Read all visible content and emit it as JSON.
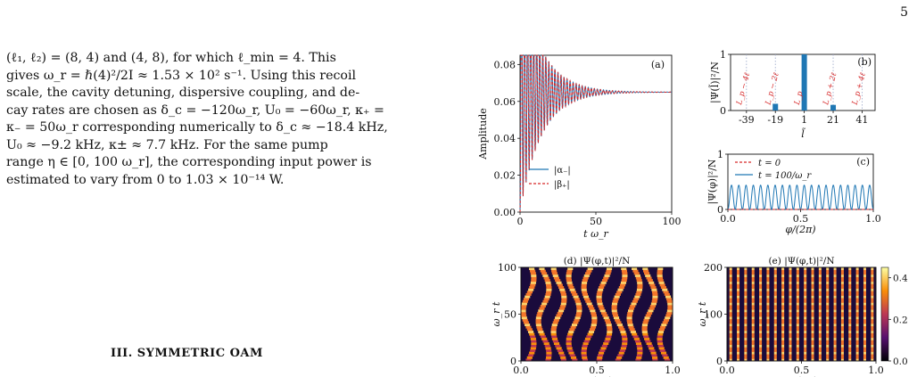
{
  "page_number": "5",
  "paragraph": [
    "(ℓ₁, ℓ₂) = (8, 4) and (4, 8), for which ℓ_min = 4. This",
    "gives ω_r = ℏ(4)²/2I ≈ 1.53 × 10² s⁻¹. Using this recoil",
    "scale, the cavity detuning, dispersive coupling, and de-",
    "cay rates are chosen as δ_c = −120ω_r, U₀ = −60ω_r, κ₊ =",
    "κ₋ = 50ω_r corresponding numerically to δ_c ≈ −18.4 kHz,",
    "U₀ ≈ −9.2 kHz, κ± ≈ 7.7 kHz. For the same pump",
    "range η ∈ [0, 100 ω_r], the corresponding input power is",
    "estimated to vary from 0 to 1.03 × 10⁻¹⁴ W."
  ],
  "section_heading": "III.   SYMMETRIC OAM",
  "colors": {
    "blue": "#1f77b4",
    "red": "#d62728"
  },
  "chart_data": [
    {
      "panel": "(a)",
      "type": "line",
      "xlabel": "t ω_r",
      "ylabel": "Amplitude",
      "xlim": [
        0,
        100
      ],
      "ylim": [
        0,
        0.085
      ],
      "xticks": [
        "0",
        "50",
        "100"
      ],
      "yticks": [
        "0.00",
        "0.02",
        "0.04",
        "0.06",
        "0.08"
      ],
      "oscillation": {
        "steady_value": 0.065,
        "initial_peak": 0.083,
        "initial_trough": 0.0,
        "period": 2.0,
        "decay_time": 14
      },
      "series": [
        {
          "name": "|α₋|",
          "style": "solid",
          "color": "#1f77b4"
        },
        {
          "name": "|β₊|",
          "style": "dashed",
          "color": "#d62728"
        }
      ],
      "legend": "bottom-left"
    },
    {
      "panel": "(b)",
      "type": "bar",
      "xlabel": "l̃",
      "ylabel": "|Ψ(l̃)|²/N",
      "ylim": [
        0,
        1
      ],
      "xticks": [
        "-39",
        "-19",
        "1",
        "21",
        "41"
      ],
      "yticks": [
        "0",
        "1"
      ],
      "bars": [
        {
          "x": -19,
          "value": 0.12
        },
        {
          "x": 1,
          "value": 1.0
        },
        {
          "x": 21,
          "value": 0.1
        }
      ],
      "annotations": [
        "L_p − 4ℓ",
        "L_p − 2ℓ",
        "L_p",
        "L_p + 2ℓ",
        "L_p + 4ℓ"
      ],
      "annotation_x": [
        -39,
        -19,
        1,
        21,
        41
      ]
    },
    {
      "panel": "(c)",
      "type": "line",
      "xlabel": "φ/(2π)",
      "ylabel": "|Ψ(φ)|²/N",
      "xlim": [
        0,
        1
      ],
      "ylim": [
        0,
        1
      ],
      "xticks": [
        "0.0",
        "0.5",
        "1.0"
      ],
      "yticks": [
        "0",
        "1"
      ],
      "series": [
        {
          "name": "t = 0",
          "style": "dashed",
          "color": "#d62728",
          "constant": 0.0
        },
        {
          "name": "t = 100/ω_r",
          "style": "solid",
          "color": "#1f77b4",
          "peaks": 20,
          "peak_value": 0.44
        }
      ],
      "legend": "top-left"
    },
    {
      "panel": "(d)",
      "type": "heatmap",
      "title": "(d)  |Ψ(φ,t)|²/N",
      "xlabel": "φ/(2π)",
      "ylabel": "ω_r t",
      "xlim": [
        0,
        1
      ],
      "ylim": [
        0,
        100
      ],
      "xticks": [
        "0.0",
        "0.5",
        "1.0"
      ],
      "yticks": [
        "0",
        "50",
        "100"
      ],
      "stripes": 10
    },
    {
      "panel": "(e)",
      "type": "heatmap",
      "title": "(e)  |Ψ(φ,t)|²/N",
      "xlabel": "φ/(2π)",
      "ylabel": "ω_r t",
      "xlim": [
        0,
        1
      ],
      "ylim": [
        0,
        200
      ],
      "xticks": [
        "0.0",
        "0.5",
        "1.0"
      ],
      "yticks": [
        "0",
        "100",
        "200"
      ],
      "stripes": 20,
      "colorbar_ticks": [
        "0.0",
        "0.2",
        "0.4"
      ]
    }
  ]
}
